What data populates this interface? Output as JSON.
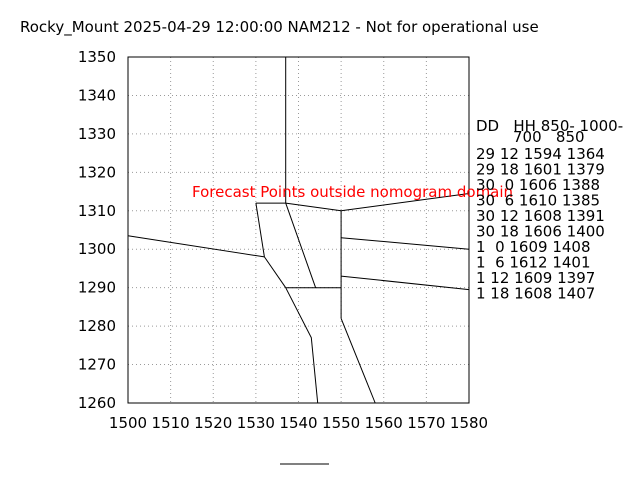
{
  "chart_data": {
    "type": "line",
    "title": "Rocky_Mount 2025-04-29 12:00:00 NAM212 - Not for operational use",
    "xlabel": "",
    "ylabel": "",
    "xlim": [
      1500,
      1580
    ],
    "ylim": [
      1260,
      1350
    ],
    "x_ticks": [
      1500,
      1510,
      1520,
      1530,
      1540,
      1550,
      1560,
      1570,
      1580
    ],
    "y_ticks": [
      1260,
      1270,
      1280,
      1290,
      1300,
      1310,
      1320,
      1330,
      1340,
      1350
    ],
    "grid": true,
    "annotation": "Forecast Points outside nomogram domain",
    "annotation_color": "#ff0000",
    "line_color": "#000000",
    "nomogram_lines": [
      {
        "points": [
          [
            1537,
            1350
          ],
          [
            1537,
            1312
          ]
        ]
      },
      {
        "points": [
          [
            1537,
            1312
          ],
          [
            1550,
            1310
          ],
          [
            1580,
            1314.5
          ]
        ]
      },
      {
        "points": [
          [
            1530,
            1312
          ],
          [
            1537,
            1312
          ]
        ]
      },
      {
        "points": [
          [
            1530,
            1312
          ],
          [
            1532,
            1298
          ]
        ]
      },
      {
        "points": [
          [
            1500,
            1303.5
          ],
          [
            1532,
            1298
          ]
        ]
      },
      {
        "points": [
          [
            1532,
            1298
          ],
          [
            1537,
            1290
          ]
        ]
      },
      {
        "points": [
          [
            1537,
            1312
          ],
          [
            1544,
            1290
          ]
        ]
      },
      {
        "points": [
          [
            1537,
            1290
          ],
          [
            1550,
            1290
          ]
        ]
      },
      {
        "points": [
          [
            1550,
            1310
          ],
          [
            1550,
            1282
          ]
        ]
      },
      {
        "points": [
          [
            1550,
            1303
          ],
          [
            1580,
            1300
          ]
        ]
      },
      {
        "points": [
          [
            1550,
            1293
          ],
          [
            1580,
            1289.5
          ]
        ]
      },
      {
        "points": [
          [
            1537,
            1290
          ],
          [
            1543,
            1277
          ],
          [
            1544.5,
            1260
          ]
        ]
      },
      {
        "points": [
          [
            1550,
            1282
          ],
          [
            1558,
            1260
          ]
        ]
      }
    ],
    "table": {
      "header_line1": "DD   HH 850- 1000-",
      "header_line2": "700   850",
      "rows": [
        "29 12 1594 1364",
        "29 18 1601 1379",
        "30  0 1606 1388",
        "30  6 1610 1385",
        "30 12 1608 1391",
        "30 18 1606 1400",
        "1  0 1609 1408",
        "1  6 1612 1401",
        "1 12 1609 1397",
        "1 18 1608 1407"
      ]
    }
  }
}
